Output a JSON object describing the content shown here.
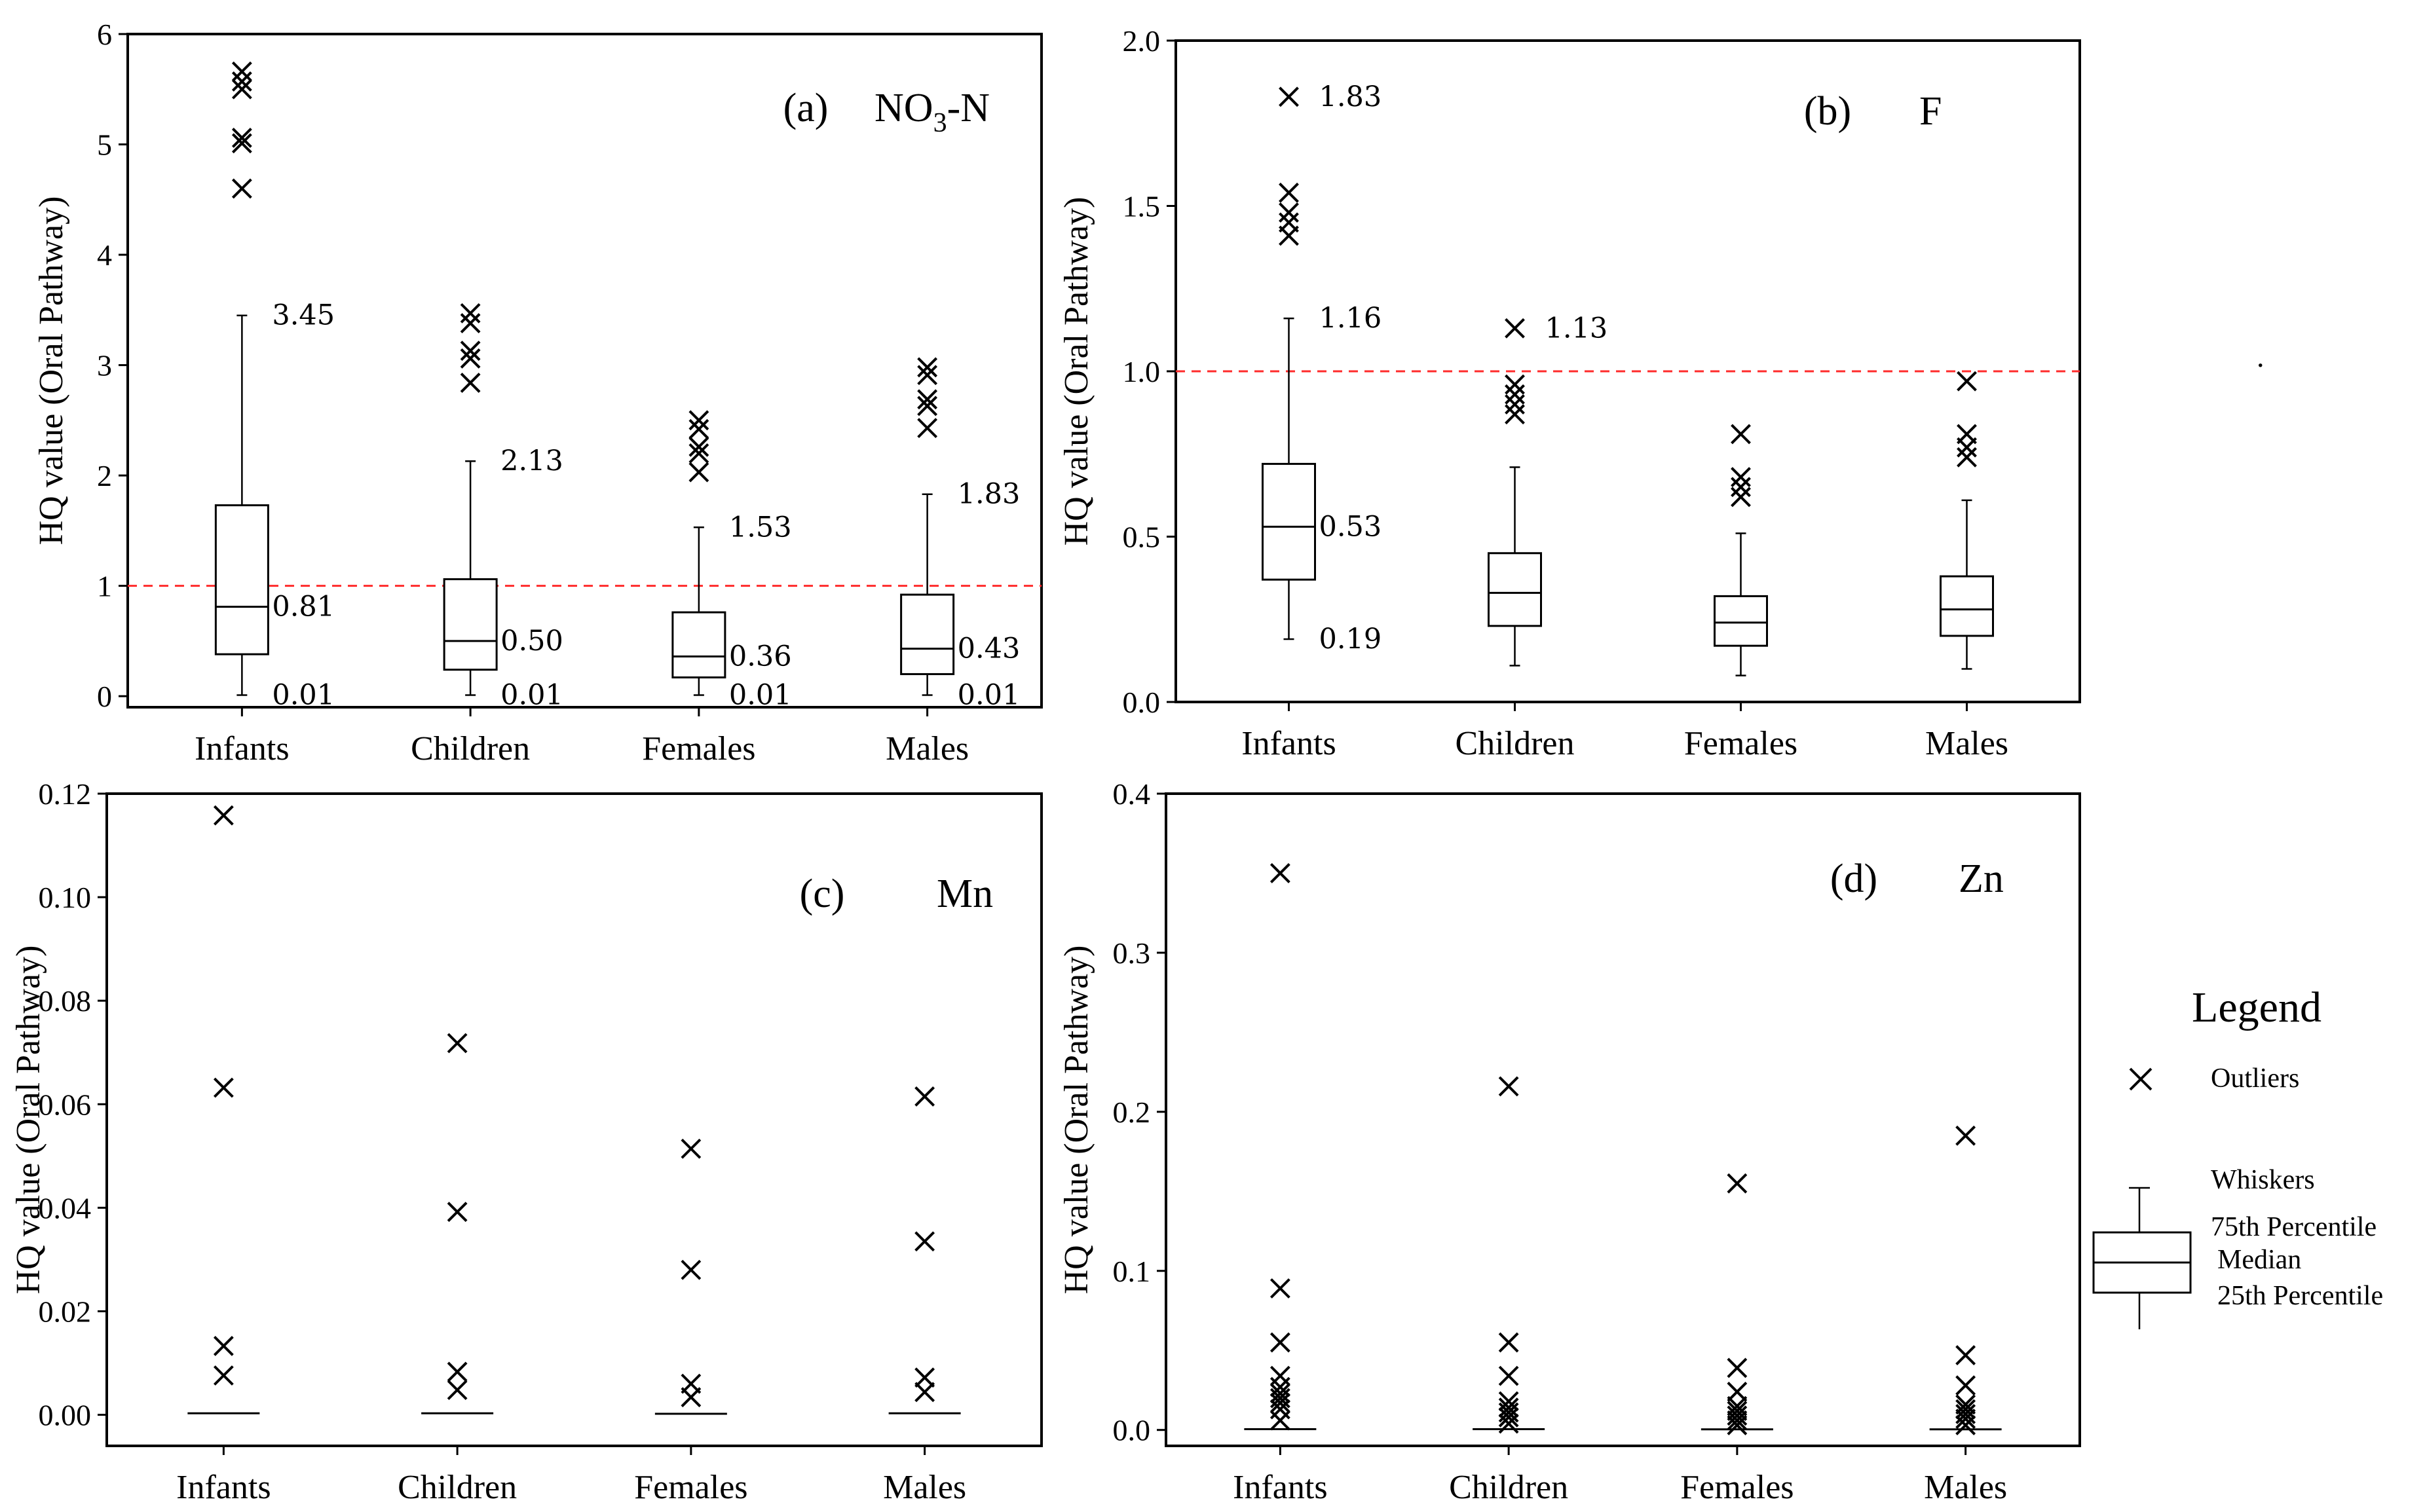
{
  "chart_data": [
    {
      "type": "box",
      "panel_label": "(a)",
      "panel_title": "NO3-N",
      "title_main": "NO",
      "title_sub": "3",
      "title_tail": "-N",
      "ylabel": "HQ value (Oral Pathway)",
      "ylim": [
        -0.1,
        6
      ],
      "yticks": [
        0,
        1,
        2,
        3,
        4,
        5,
        6
      ],
      "ytick_labels": [
        "0",
        "1",
        "2",
        "3",
        "4",
        "5",
        "6"
      ],
      "reference_line": 1.0,
      "categories": [
        "Infants",
        "Children",
        "Females",
        "Males"
      ],
      "boxes": [
        {
          "min": 0.01,
          "q1": 0.38,
          "median": 0.81,
          "q3": 1.73,
          "max": 3.45,
          "outliers": [
            4.6,
            5.01,
            5.06,
            5.5,
            5.57,
            5.66
          ]
        },
        {
          "min": 0.01,
          "q1": 0.24,
          "median": 0.5,
          "q3": 1.06,
          "max": 2.13,
          "outliers": [
            2.84,
            3.06,
            3.13,
            3.38,
            3.47
          ]
        },
        {
          "min": 0.01,
          "q1": 0.17,
          "median": 0.36,
          "q3": 0.76,
          "max": 1.53,
          "outliers": [
            2.03,
            2.2,
            2.26,
            2.42,
            2.5
          ]
        },
        {
          "min": 0.01,
          "q1": 0.2,
          "median": 0.43,
          "q3": 0.92,
          "max": 1.83,
          "outliers": [
            2.43,
            2.63,
            2.69,
            2.91,
            2.98
          ]
        }
      ],
      "annotations": [
        {
          "cat": 0,
          "value": 3.45,
          "text": "3.45"
        },
        {
          "cat": 0,
          "value": 0.81,
          "text": "0.81"
        },
        {
          "cat": 0,
          "value": 0.01,
          "text": "0.01"
        },
        {
          "cat": 1,
          "value": 2.13,
          "text": "2.13"
        },
        {
          "cat": 1,
          "value": 0.5,
          "text": "0.50"
        },
        {
          "cat": 1,
          "value": 0.01,
          "text": "0.01"
        },
        {
          "cat": 2,
          "value": 1.53,
          "text": "1.53"
        },
        {
          "cat": 2,
          "value": 0.36,
          "text": "0.36"
        },
        {
          "cat": 2,
          "value": 0.01,
          "text": "0.01"
        },
        {
          "cat": 3,
          "value": 1.83,
          "text": "1.83"
        },
        {
          "cat": 3,
          "value": 0.43,
          "text": "0.43"
        },
        {
          "cat": 3,
          "value": 0.01,
          "text": "0.01"
        }
      ]
    },
    {
      "type": "box",
      "panel_label": "(b)",
      "panel_title": "F",
      "ylabel": "HQ value (Oral Pathway)",
      "ylim": [
        0,
        2.0
      ],
      "yticks": [
        0,
        0.5,
        1.0,
        1.5,
        2.0
      ],
      "ytick_labels": [
        "0.0",
        "0.5",
        "1.0",
        "1.5",
        "2.0"
      ],
      "reference_line": 1.0,
      "categories": [
        "Infants",
        "Children",
        "Females",
        "Males"
      ],
      "boxes": [
        {
          "min": 0.19,
          "q1": 0.37,
          "median": 0.53,
          "q3": 0.72,
          "max": 1.16,
          "outliers": [
            1.41,
            1.45,
            1.48,
            1.54,
            1.83
          ]
        },
        {
          "min": 0.11,
          "q1": 0.23,
          "median": 0.33,
          "q3": 0.45,
          "max": 0.71,
          "outliers": [
            0.87,
            0.9,
            0.93,
            0.96,
            1.13
          ]
        },
        {
          "min": 0.08,
          "q1": 0.17,
          "median": 0.24,
          "q3": 0.32,
          "max": 0.51,
          "outliers": [
            0.62,
            0.65,
            0.68,
            0.81
          ]
        },
        {
          "min": 0.1,
          "q1": 0.2,
          "median": 0.28,
          "q3": 0.38,
          "max": 0.61,
          "outliers": [
            0.74,
            0.77,
            0.81,
            0.97
          ]
        }
      ],
      "annotations": [
        {
          "cat": 0,
          "value": 1.83,
          "text": "1.83"
        },
        {
          "cat": 0,
          "value": 1.16,
          "text": "1.16"
        },
        {
          "cat": 0,
          "value": 0.53,
          "text": "0.53"
        },
        {
          "cat": 0,
          "value": 0.19,
          "text": "0.19"
        },
        {
          "cat": 1,
          "value": 1.13,
          "text": "1.13"
        }
      ]
    },
    {
      "type": "box",
      "panel_label": "(c)",
      "panel_title": "Mn",
      "ylabel": "HQ value (Oral Pathway)",
      "ylim": [
        -0.006,
        0.12
      ],
      "yticks": [
        0,
        0.02,
        0.04,
        0.06,
        0.08,
        0.1,
        0.12
      ],
      "ytick_labels": [
        "0.00",
        "0.02",
        "0.04",
        "0.06",
        "0.08",
        "0.10",
        "0.12"
      ],
      "categories": [
        "Infants",
        "Children",
        "Females",
        "Males"
      ],
      "boxes": [
        {
          "median": 0.0003,
          "outliers": [
            0.0076,
            0.0133,
            0.0632,
            0.1158
          ]
        },
        {
          "median": 0.0003,
          "outliers": [
            0.0048,
            0.0083,
            0.0392,
            0.0718
          ]
        },
        {
          "median": 0.0002,
          "outliers": [
            0.0034,
            0.006,
            0.028,
            0.0514
          ]
        },
        {
          "median": 0.0003,
          "outliers": [
            0.0044,
            0.0072,
            0.0335,
            0.0615
          ]
        }
      ],
      "annotations": []
    },
    {
      "type": "box",
      "panel_label": "(d)",
      "panel_title": "Zn",
      "ylabel": "HQ value (Oral Pathway)",
      "ylim": [
        -0.01,
        0.4
      ],
      "yticks": [
        0,
        0.1,
        0.2,
        0.3,
        0.4
      ],
      "ytick_labels": [
        "0.0",
        "0.1",
        "0.2",
        "0.3",
        "0.4"
      ],
      "categories": [
        "Infants",
        "Children",
        "Females",
        "Males"
      ],
      "boxes": [
        {
          "median": 0.0005,
          "outliers": [
            0.006,
            0.013,
            0.017,
            0.02,
            0.023,
            0.027,
            0.034,
            0.055,
            0.089,
            0.35
          ]
        },
        {
          "median": 0.0005,
          "outliers": [
            0.004,
            0.008,
            0.011,
            0.014,
            0.018,
            0.034,
            0.055,
            0.216
          ]
        },
        {
          "median": 0.0004,
          "outliers": [
            0.003,
            0.006,
            0.009,
            0.012,
            0.015,
            0.024,
            0.039,
            0.155
          ]
        },
        {
          "median": 0.0004,
          "outliers": [
            0.003,
            0.007,
            0.01,
            0.013,
            0.016,
            0.028,
            0.047,
            0.185
          ]
        }
      ],
      "annotations": []
    }
  ],
  "legend": {
    "title": "Legend",
    "outliers": "Outliers",
    "whiskers": "Whiskers",
    "p75": "75th Percentile",
    "median": "Median",
    "p25": "25th Percentile"
  },
  "extra_mark": "."
}
